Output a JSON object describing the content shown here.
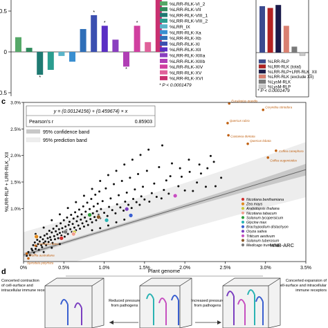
{
  "panel_c_label": "c",
  "panel_d_label": "d",
  "top_left": {
    "yticks": [
      "0.5",
      "0",
      "-0.5"
    ],
    "footnote": "* P < 0.0001479",
    "legend": [
      {
        "label": "%LRR-RLK-VI_2",
        "color": "#55a868"
      },
      {
        "label": "%LRR-RLK-VII",
        "color": "#2f8a5c"
      },
      {
        "label": "%LRR-RLK-VIII_1",
        "color": "#1f7a72"
      },
      {
        "label": "%LRR-RLK-VIII_2",
        "color": "#2a9d8f"
      },
      {
        "label": "%LRR_IX",
        "color": "#5ab4c9"
      },
      {
        "label": "%LRR-RLK-Xa",
        "color": "#3a8fd0"
      },
      {
        "label": "%LRR-RLK-Xb",
        "color": "#2f6fb8"
      },
      {
        "label": "%LRR-RLK-XI",
        "color": "#3b4fb0"
      },
      {
        "label": "%LRR-RLK-XII",
        "color": "#5a2fc4"
      },
      {
        "label": "%LRR-RLK-XIIIa",
        "color": "#8a3fc0"
      },
      {
        "label": "%LRR-RLK-XIIIb",
        "color": "#b03fb5"
      },
      {
        "label": "%LRR-RLK-XIV",
        "color": "#d03fa0"
      },
      {
        "label": "%LRR-RLK-XV",
        "color": "#e0609a"
      },
      {
        "label": "%LRR-RLK-XVI",
        "color": "#c93070"
      }
    ]
  },
  "top_right": {
    "legend": [
      {
        "label": "%LRR-RLP",
        "color": "#3b4a8f"
      },
      {
        "label": "%LRR-RLK (total)",
        "color": "#b22222"
      },
      {
        "label": "%LRR-RLP+LRR-RLK_XII",
        "color": "#1a1a4a"
      },
      {
        "label": "%LRR-RLK (exclude XII)",
        "color": "#d98070"
      },
      {
        "label": "%LysM-RLK",
        "color": "#7a7a7a"
      },
      {
        "label": "%LysM-RLP",
        "color": "#c8c8c8"
      }
    ],
    "footnote": "* P < 0.0001479"
  },
  "panel_c": {
    "equation": "y = (0.00124156) + (0.459674) × x",
    "pearson_label": "Pearson's r",
    "pearson_value": "0.85903",
    "band_conf": "95% confidence band",
    "band_pred": "95% prediction band"
  },
  "panel_d": {
    "title": "Plant genome",
    "left_text": "Concerted contraction of cell-surface and intracellular immune receptors",
    "right_text": "Concerted expansion of cell-surface and intracellular immune receptors",
    "mid_left": "Reduced pressure from pathogens",
    "mid_right": "Increased pressure from pathogens"
  },
  "colors": {
    "fit_line": "#666666",
    "conf_band": "#c8c8c8",
    "pred_band": "#ededed",
    "points": "#111111",
    "highlight_label": "#c06010"
  },
  "chart_data": [
    {
      "type": "bar",
      "title": "",
      "categories": [
        "%LRR-RLK-VI_2",
        "%LRR-RLK-VII",
        "%LRR-RLK-VIII_1",
        "%LRR-RLK-VIII_2",
        "%LRR_IX",
        "%LRR-RLK-Xa",
        "%LRR-RLK-Xb",
        "%LRR-RLK-XI",
        "%LRR-RLK-XII",
        "%LRR-RLK-XIIIa",
        "%LRR-RLK-XIIIb",
        "%LRR-RLK-XIV",
        "%LRR-RLK-XV",
        "%LRR-RLK-XVI"
      ],
      "values": [
        0.18,
        0.05,
        -0.28,
        -0.22,
        -0.05,
        -0.12,
        0.28,
        0.45,
        0.32,
        0.15,
        -0.18,
        0.32,
        0.12,
        0.72
      ],
      "significant": [
        false,
        false,
        true,
        false,
        false,
        false,
        false,
        true,
        true,
        false,
        true,
        true,
        false,
        false
      ],
      "ylim": [
        -0.5,
        0.7
      ],
      "xlabel": "",
      "ylabel": ""
    },
    {
      "type": "bar",
      "title": "",
      "categories": [
        "%LRR-RLP",
        "%LRR-RLK (total)",
        "%LRR-RLP+LRR-RLK_XII",
        "%LRR-RLK (exclude XII)",
        "%LysM-RLK",
        "%LysM-RLP"
      ],
      "values": [
        0.78,
        0.75,
        0.8,
        0.45,
        0.1,
        -0.05
      ],
      "ylim": [
        -0.5,
        0.9
      ],
      "xlabel": "",
      "ylabel": ""
    },
    {
      "type": "scatter",
      "title": "",
      "xlabel": "%NB-ARC",
      "ylabel": "%LRR-RLP + LRR-RLK_XII",
      "xlim": [
        0,
        0.035
      ],
      "ylim": [
        0,
        0.03
      ],
      "xticks": [
        "0%",
        "0.5%",
        "1.0%",
        "1.5%",
        "2.0%",
        "2.5%",
        "3.0%",
        "3.5%"
      ],
      "xtick_values": [
        0,
        0.005,
        0.01,
        0.015,
        0.02,
        0.025,
        0.03,
        0.035
      ],
      "yticks": [
        "1.0%",
        "1.5%",
        "2.0%",
        "2.5%",
        "3.0%"
      ],
      "ytick_values": [
        0.01,
        0.015,
        0.02,
        0.025,
        0.03
      ],
      "fit": {
        "intercept": 0.00124156,
        "slope": 0.459674
      },
      "labeled_points": [
        {
          "name": "Eucalyptus grandis",
          "x": 0.0255,
          "y": 0.0298
        },
        {
          "name": "Corymbia citriodora",
          "x": 0.0297,
          "y": 0.0286
        },
        {
          "name": "Quercus rubra",
          "x": 0.0253,
          "y": 0.0261
        },
        {
          "name": "Castanea dentata",
          "x": 0.0254,
          "y": 0.0238
        },
        {
          "name": "Quercus lobata",
          "x": 0.0278,
          "y": 0.0222
        },
        {
          "name": "Coffea canephora",
          "x": 0.0313,
          "y": 0.0209
        },
        {
          "name": "Coffea eugenioides",
          "x": 0.0303,
          "y": 0.0196
        },
        {
          "name": "Gentiana lutea",
          "x": 0.0015,
          "y": 0.003
        },
        {
          "name": "Wolffia australiana",
          "x": 0.0004,
          "y": 0.0015
        },
        {
          "name": "Spirodela polyrhiza",
          "x": 0.0006,
          "y": 0.0006
        }
      ],
      "highlighted_species": [
        {
          "name": "Nicotiana benthamiana",
          "color": "#d03030",
          "x": 0.0047,
          "y": 0.0044
        },
        {
          "name": "Zea mays",
          "color": "#e08a1e",
          "x": 0.0016,
          "y": 0.0047
        },
        {
          "name": "Arabidopsis thaliana",
          "color": "#c9c93a",
          "x": 0.0063,
          "y": 0.0055
        },
        {
          "name": "Nicotiana tabacum",
          "color": "#f0a090",
          "x": 0.0062,
          "y": 0.0052
        },
        {
          "name": "Solanum lycopersicum",
          "color": "#2c9e3a",
          "x": 0.0082,
          "y": 0.0088
        },
        {
          "name": "Glycine max",
          "color": "#2ab3b3",
          "x": 0.0103,
          "y": 0.0078
        },
        {
          "name": "Brachypodium distachyon",
          "color": "#3a5fd0",
          "x": 0.0133,
          "y": 0.0087
        },
        {
          "name": "Oryza sativa",
          "color": "#7b3fc0",
          "x": 0.0128,
          "y": 0.0099
        },
        {
          "name": "Triticum aestivum",
          "color": "#c64fc0",
          "x": 0.0188,
          "y": 0.0124
        },
        {
          "name": "Solanum tuberosum",
          "color": "#8a5a2a",
          "x": 0.0093,
          "y": 0.0084
        },
        {
          "name": "Medicago truncatula",
          "color": "#7a7a7a",
          "x": 0.0052,
          "y": 0.0056
        }
      ],
      "points": [
        [
          0.0004,
          0.0011
        ],
        [
          0.0006,
          0.0018
        ],
        [
          0.0008,
          0.0012
        ],
        [
          0.001,
          0.0024
        ],
        [
          0.0011,
          0.0021
        ],
        [
          0.0012,
          0.0031
        ],
        [
          0.0013,
          0.0017
        ],
        [
          0.0014,
          0.0036
        ],
        [
          0.0015,
          0.0024
        ],
        [
          0.0016,
          0.0029
        ],
        [
          0.0017,
          0.0041
        ],
        [
          0.0018,
          0.0033
        ],
        [
          0.0019,
          0.0022
        ],
        [
          0.002,
          0.0038
        ],
        [
          0.0021,
          0.0046
        ],
        [
          0.0022,
          0.0031
        ],
        [
          0.0023,
          0.0027
        ],
        [
          0.0024,
          0.0042
        ],
        [
          0.0025,
          0.0035
        ],
        [
          0.0026,
          0.0049
        ],
        [
          0.0027,
          0.0038
        ],
        [
          0.0028,
          0.0031
        ],
        [
          0.0029,
          0.0052
        ],
        [
          0.003,
          0.0044
        ],
        [
          0.0031,
          0.0037
        ],
        [
          0.0032,
          0.0058
        ],
        [
          0.0033,
          0.0046
        ],
        [
          0.0034,
          0.0041
        ],
        [
          0.0035,
          0.0055
        ],
        [
          0.0036,
          0.0035
        ],
        [
          0.0037,
          0.0062
        ],
        [
          0.0038,
          0.0048
        ],
        [
          0.0039,
          0.0042
        ],
        [
          0.004,
          0.0057
        ],
        [
          0.0041,
          0.0067
        ],
        [
          0.0042,
          0.0051
        ],
        [
          0.0043,
          0.0044
        ],
        [
          0.0044,
          0.0061
        ],
        [
          0.0045,
          0.0054
        ],
        [
          0.0046,
          0.0072
        ],
        [
          0.0047,
          0.0049
        ],
        [
          0.0048,
          0.0063
        ],
        [
          0.0049,
          0.0056
        ],
        [
          0.005,
          0.0078
        ],
        [
          0.0051,
          0.0047
        ],
        [
          0.0052,
          0.0066
        ],
        [
          0.0053,
          0.0059
        ],
        [
          0.0054,
          0.0083
        ],
        [
          0.0055,
          0.0052
        ],
        [
          0.0056,
          0.0069
        ],
        [
          0.0057,
          0.0075
        ],
        [
          0.0058,
          0.0061
        ],
        [
          0.0059,
          0.0088
        ],
        [
          0.006,
          0.0056
        ],
        [
          0.0061,
          0.0071
        ],
        [
          0.0062,
          0.0081
        ],
        [
          0.0063,
          0.0064
        ],
        [
          0.0064,
          0.0093
        ],
        [
          0.0065,
          0.0059
        ],
        [
          0.0066,
          0.0076
        ],
        [
          0.0067,
          0.0085
        ],
        [
          0.0068,
          0.0068
        ],
        [
          0.0069,
          0.0098
        ],
        [
          0.007,
          0.0062
        ],
        [
          0.0071,
          0.0079
        ],
        [
          0.0072,
          0.0089
        ],
        [
          0.0073,
          0.0072
        ],
        [
          0.0074,
          0.0104
        ],
        [
          0.0075,
          0.0066
        ],
        [
          0.0076,
          0.0083
        ],
        [
          0.0077,
          0.0094
        ],
        [
          0.0078,
          0.0076
        ],
        [
          0.0079,
          0.0111
        ],
        [
          0.008,
          0.0069
        ],
        [
          0.0081,
          0.0087
        ],
        [
          0.0082,
          0.0099
        ],
        [
          0.0083,
          0.008
        ],
        [
          0.0084,
          0.0118
        ],
        [
          0.0085,
          0.0074
        ],
        [
          0.0086,
          0.0091
        ],
        [
          0.0087,
          0.0104
        ],
        [
          0.0088,
          0.0084
        ],
        [
          0.0089,
          0.0126
        ],
        [
          0.009,
          0.0078
        ],
        [
          0.0091,
          0.0095
        ],
        [
          0.0092,
          0.0109
        ],
        [
          0.0093,
          0.0088
        ],
        [
          0.0094,
          0.0132
        ],
        [
          0.0095,
          0.0082
        ],
        [
          0.0096,
          0.0099
        ],
        [
          0.0098,
          0.0114
        ],
        [
          0.01,
          0.0092
        ],
        [
          0.0102,
          0.0138
        ],
        [
          0.0104,
          0.0086
        ],
        [
          0.0106,
          0.0103
        ],
        [
          0.0108,
          0.0119
        ],
        [
          0.011,
          0.0097
        ],
        [
          0.0112,
          0.0146
        ],
        [
          0.0114,
          0.0091
        ],
        [
          0.0116,
          0.0108
        ],
        [
          0.0118,
          0.0125
        ],
        [
          0.012,
          0.0102
        ],
        [
          0.0122,
          0.0152
        ],
        [
          0.0124,
          0.0096
        ],
        [
          0.0126,
          0.0113
        ],
        [
          0.0128,
          0.013
        ],
        [
          0.013,
          0.0107
        ],
        [
          0.0132,
          0.0158
        ],
        [
          0.0134,
          0.0101
        ],
        [
          0.0136,
          0.0118
        ],
        [
          0.0138,
          0.0136
        ],
        [
          0.014,
          0.0112
        ],
        [
          0.0142,
          0.0165
        ],
        [
          0.0144,
          0.0107
        ],
        [
          0.0146,
          0.0123
        ],
        [
          0.0148,
          0.0141
        ],
        [
          0.015,
          0.0117
        ],
        [
          0.0153,
          0.0171
        ],
        [
          0.0156,
          0.0113
        ],
        [
          0.0159,
          0.0129
        ],
        [
          0.0162,
          0.0147
        ],
        [
          0.0165,
          0.0122
        ],
        [
          0.0168,
          0.0178
        ],
        [
          0.0171,
          0.0119
        ],
        [
          0.0174,
          0.0135
        ],
        [
          0.0177,
          0.0153
        ],
        [
          0.018,
          0.0128
        ],
        [
          0.0184,
          0.0185
        ],
        [
          0.0188,
          0.0126
        ],
        [
          0.0192,
          0.0142
        ],
        [
          0.0196,
          0.016
        ],
        [
          0.02,
          0.0134
        ],
        [
          0.0205,
          0.0192
        ],
        [
          0.021,
          0.0133
        ],
        [
          0.0215,
          0.0149
        ],
        [
          0.022,
          0.0166
        ],
        [
          0.0226,
          0.0141
        ],
        [
          0.0232,
          0.0199
        ],
        [
          0.0238,
          0.0142
        ],
        [
          0.0245,
          0.0158
        ],
        [
          0.0065,
          0.0112
        ],
        [
          0.0075,
          0.0124
        ],
        [
          0.0085,
          0.0137
        ],
        [
          0.0095,
          0.0152
        ],
        [
          0.0105,
          0.0163
        ],
        [
          0.0115,
          0.0171
        ],
        [
          0.0125,
          0.0183
        ],
        [
          0.0135,
          0.0192
        ],
        [
          0.0145,
          0.0201
        ],
        [
          0.0155,
          0.0211
        ],
        [
          0.0035,
          0.0078
        ],
        [
          0.0045,
          0.0089
        ],
        [
          0.0055,
          0.0101
        ],
        [
          0.0025,
          0.0064
        ],
        [
          0.0015,
          0.0052
        ],
        [
          0.0085,
          0.0059
        ],
        [
          0.0095,
          0.0063
        ],
        [
          0.0105,
          0.0068
        ],
        [
          0.0115,
          0.0074
        ],
        [
          0.0125,
          0.0079
        ],
        [
          0.0172,
          0.0219
        ],
        [
          0.0182,
          0.0161
        ],
        [
          0.0194,
          0.0176
        ],
        [
          0.0206,
          0.0169
        ],
        [
          0.0218,
          0.0183
        ],
        [
          0.0228,
          0.0176
        ],
        [
          0.0236,
          0.0188
        ],
        [
          0.0025,
          0.0018
        ],
        [
          0.0035,
          0.0026
        ],
        [
          0.0045,
          0.0033
        ]
      ]
    }
  ]
}
